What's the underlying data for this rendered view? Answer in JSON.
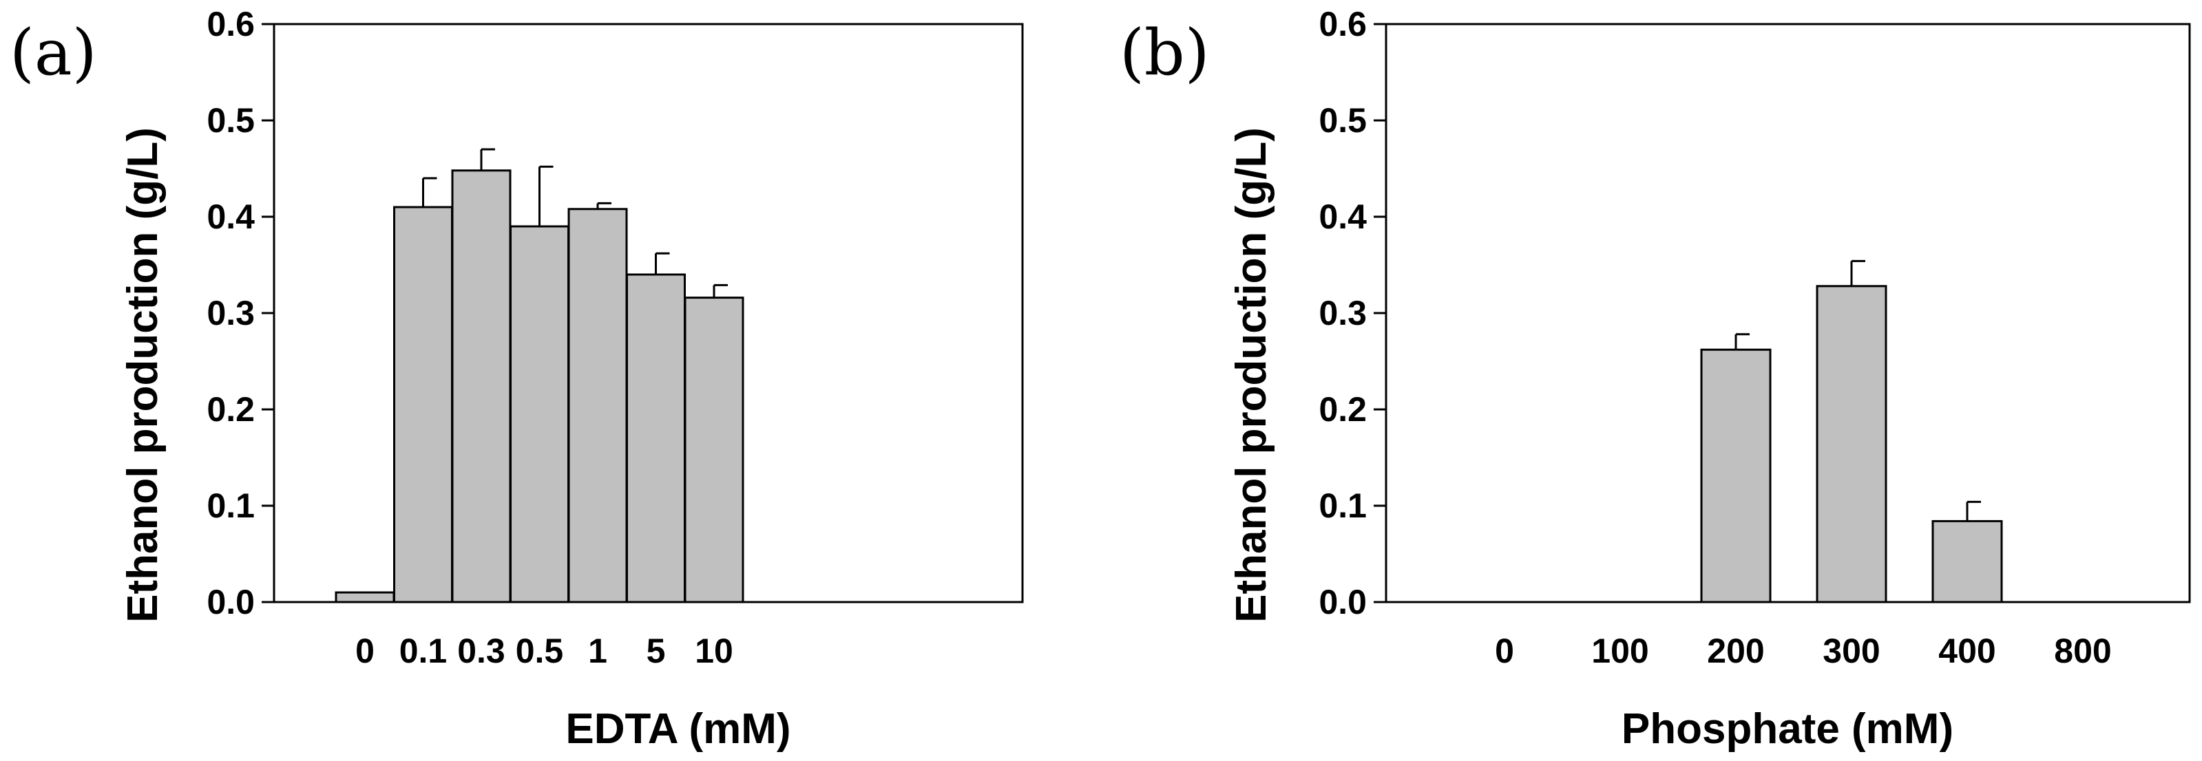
{
  "chart_data": [
    {
      "type": "bar",
      "panel_label": "(a)",
      "categories": [
        "0",
        "0.1",
        "0.3",
        "0.5",
        "1",
        "5",
        "10"
      ],
      "values": [
        0.01,
        0.41,
        0.448,
        0.39,
        0.408,
        0.34,
        0.316
      ],
      "errors": [
        0.0,
        0.03,
        0.022,
        0.062,
        0.006,
        0.022,
        0.013
      ],
      "xlabel": "EDTA (mM)",
      "ylabel": "Ethanol production (g/L)",
      "ylim": [
        0,
        0.6
      ],
      "yticks": [
        "0.0",
        "0.1",
        "0.2",
        "0.3",
        "0.4",
        "0.5",
        "0.6"
      ],
      "colors": {
        "bar": "#c0c0c0",
        "edge": "#000000"
      }
    },
    {
      "type": "bar",
      "panel_label": "(b)",
      "categories": [
        "0",
        "100",
        "200",
        "300",
        "400",
        "800"
      ],
      "values": [
        0,
        0,
        0.262,
        0.328,
        0.084,
        0
      ],
      "errors": [
        0,
        0,
        0.016,
        0.026,
        0.02,
        0
      ],
      "xlabel": "Phosphate (mM)",
      "ylabel": "Ethanol production (g/L)",
      "ylim": [
        0,
        0.6
      ],
      "yticks": [
        "0.0",
        "0.1",
        "0.2",
        "0.3",
        "0.4",
        "0.5",
        "0.6"
      ],
      "colors": {
        "bar": "#c0c0c0",
        "edge": "#000000"
      }
    }
  ]
}
